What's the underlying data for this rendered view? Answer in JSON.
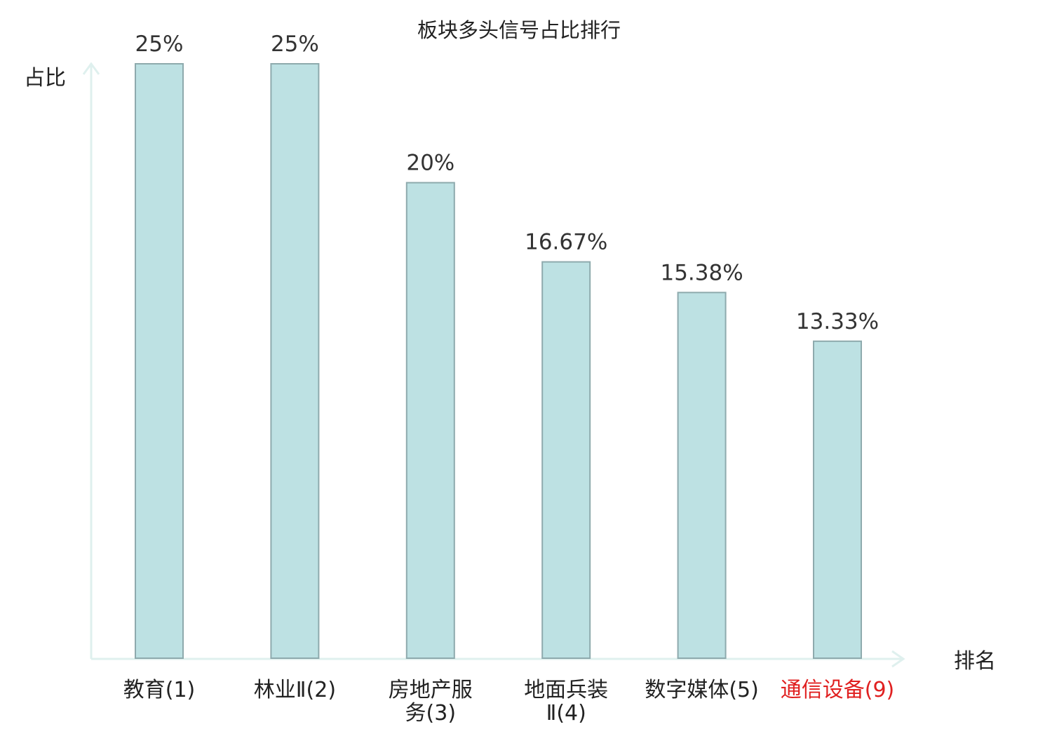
{
  "chart_data": {
    "type": "bar",
    "title": "板块多头信号占比排行",
    "ylabel": "占比",
    "xlabel": "排名",
    "categories": [
      [
        "教育(1)"
      ],
      [
        "林业Ⅱ(2)"
      ],
      [
        "房地产服",
        "务(3)"
      ],
      [
        "地面兵装",
        "Ⅱ(4)"
      ],
      [
        "数字媒体(5)"
      ],
      [
        "通信设备(9)"
      ]
    ],
    "values": [
      25,
      25,
      20,
      16.67,
      15.38,
      13.33
    ],
    "value_labels": [
      "25%",
      "25%",
      "20%",
      "16.67%",
      "15.38%",
      "13.33%"
    ],
    "highlight": [
      false,
      false,
      false,
      false,
      false,
      true
    ],
    "ylim": [
      0,
      25
    ],
    "grid": false,
    "legend": "none",
    "colors": {
      "bar_fill": "#bde1e3",
      "bar_stroke": "#8eaaad",
      "axis": "#dff0ee",
      "text": "#222222",
      "value_text": "#333333",
      "highlight_text": "#e02020"
    }
  }
}
